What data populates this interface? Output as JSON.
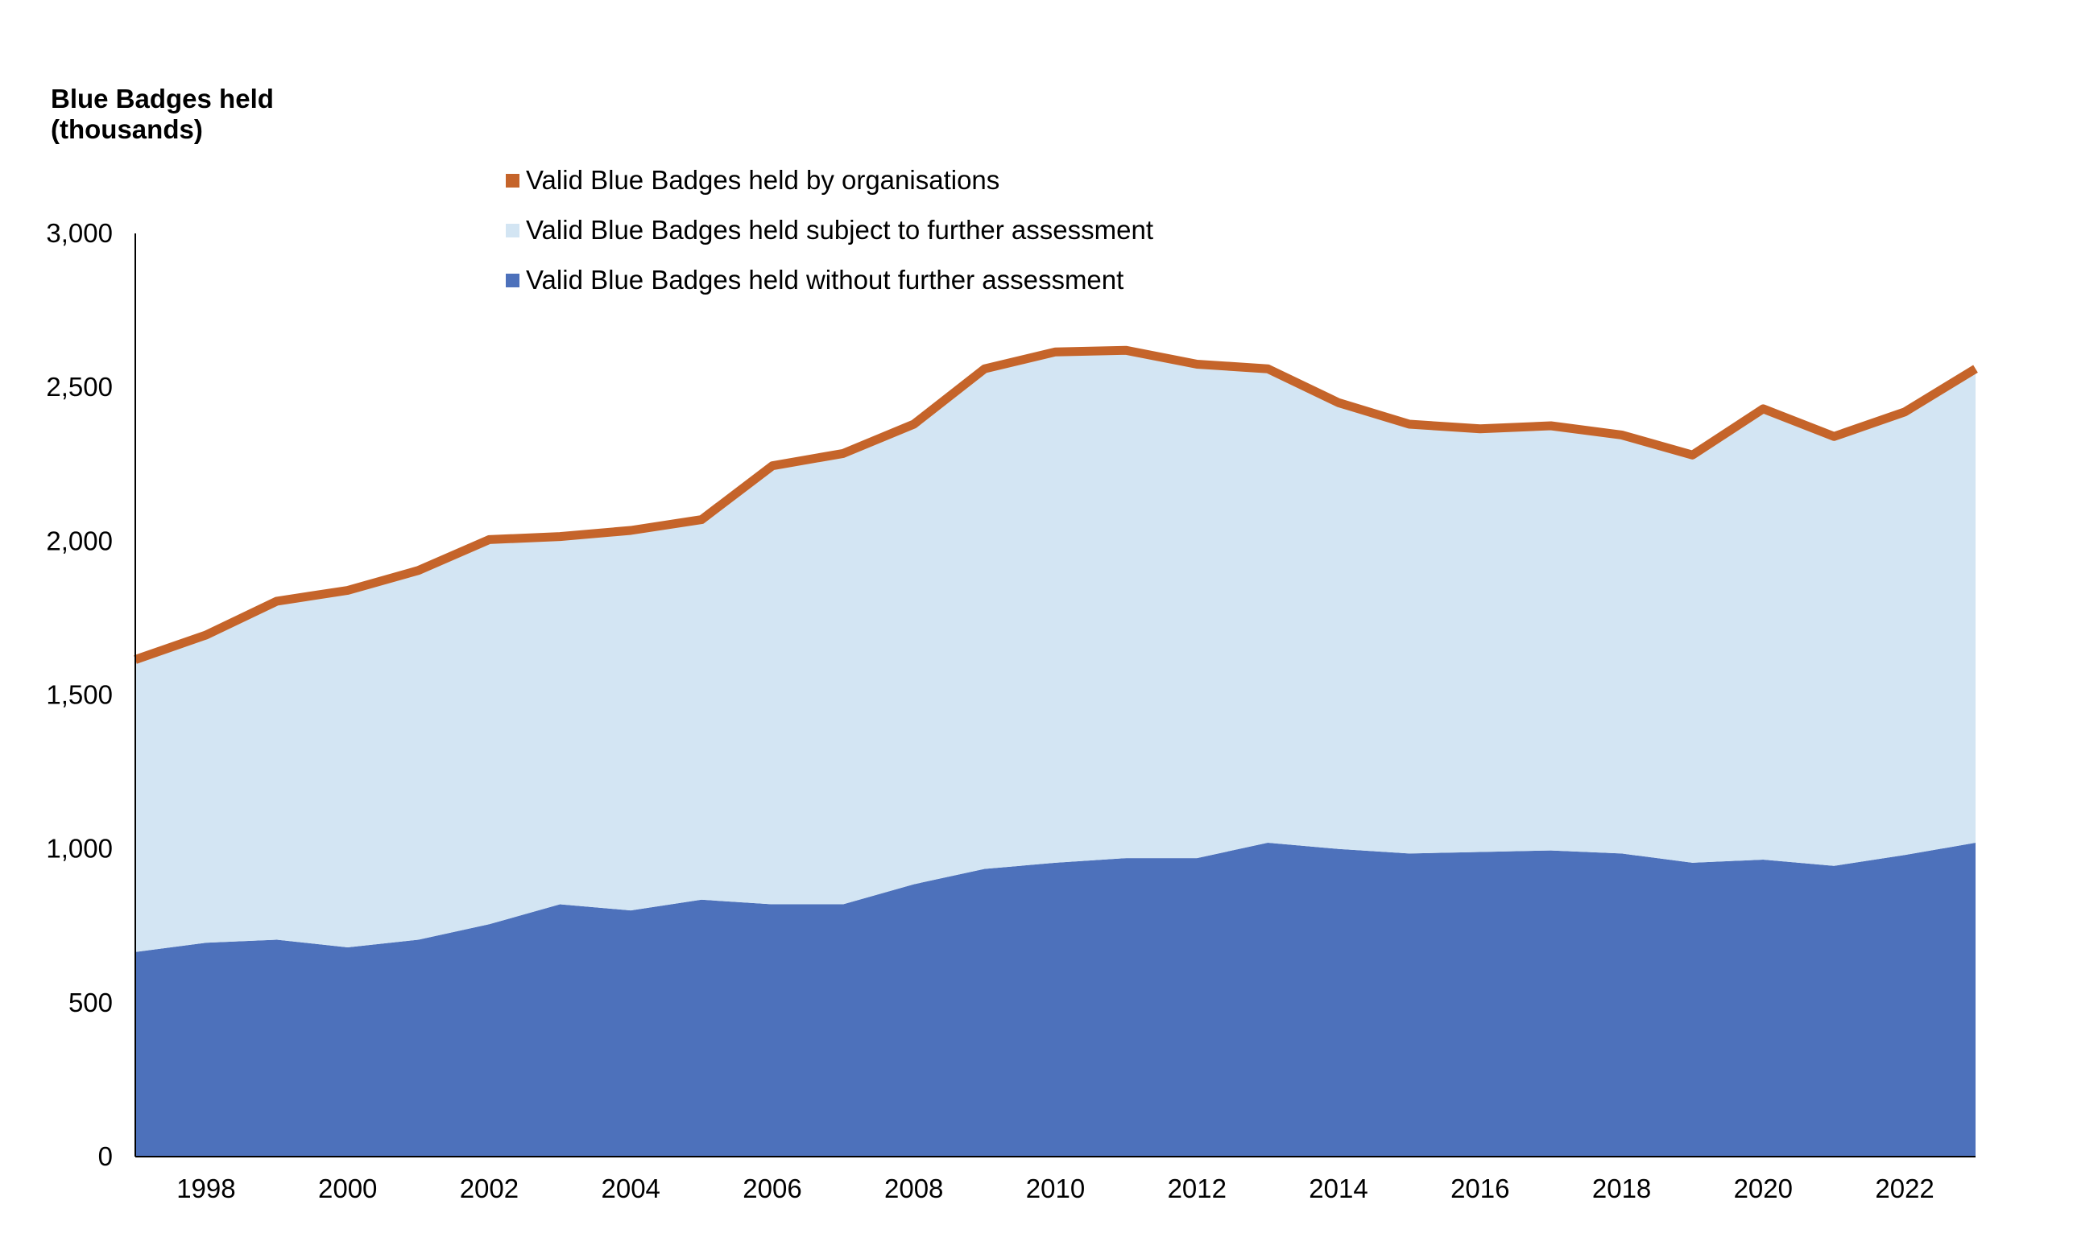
{
  "chart_data": {
    "type": "area",
    "ylabel": [
      "Blue Badges held",
      "(thousands)"
    ],
    "xlabel": "",
    "title": "",
    "x": [
      1997,
      1998,
      1999,
      2000,
      2001,
      2002,
      2003,
      2004,
      2005,
      2006,
      2007,
      2008,
      2009,
      2010,
      2011,
      2012,
      2013,
      2014,
      2015,
      2016,
      2017,
      2018,
      2019,
      2020,
      2021,
      2022,
      2023
    ],
    "x_tick_labels": [
      "1998",
      "2000",
      "2002",
      "2004",
      "2006",
      "2008",
      "2010",
      "2012",
      "2014",
      "2016",
      "2018",
      "2020",
      "2022"
    ],
    "y_tick_labels": [
      "0",
      "500",
      "1,000",
      "1,500",
      "2,000",
      "2,500",
      "3,000"
    ],
    "ylim": [
      0,
      3000
    ],
    "stacked": true,
    "grid": false,
    "legend_position": "top-center",
    "series": [
      {
        "name": "Valid Blue Badges held without further assessment",
        "kind": "area",
        "color": "#4d71bb",
        "values": [
          665,
          695,
          705,
          680,
          705,
          755,
          820,
          800,
          835,
          820,
          820,
          885,
          935,
          955,
          970,
          970,
          1020,
          1000,
          985,
          990,
          995,
          985,
          955,
          965,
          945,
          980,
          1020
        ]
      },
      {
        "name": "Valid Blue Badges held subject to further assessment",
        "kind": "area",
        "color": "#d3e5f3",
        "values": [
          940,
          990,
          1090,
          1150,
          1190,
          1240,
          1185,
          1225,
          1225,
          1415,
          1455,
          1485,
          1615,
          1650,
          1640,
          1595,
          1530,
          1440,
          1385,
          1365,
          1370,
          1350,
          1315,
          1455,
          1385,
          1430,
          1530
        ]
      },
      {
        "name": "Valid Blue Badges held by organisations",
        "kind": "line",
        "color": "#c5642a",
        "values": [
          10,
          10,
          10,
          10,
          10,
          10,
          10,
          10,
          10,
          10,
          10,
          10,
          10,
          10,
          10,
          10,
          10,
          10,
          10,
          10,
          10,
          10,
          10,
          10,
          10,
          10,
          10
        ]
      }
    ]
  }
}
